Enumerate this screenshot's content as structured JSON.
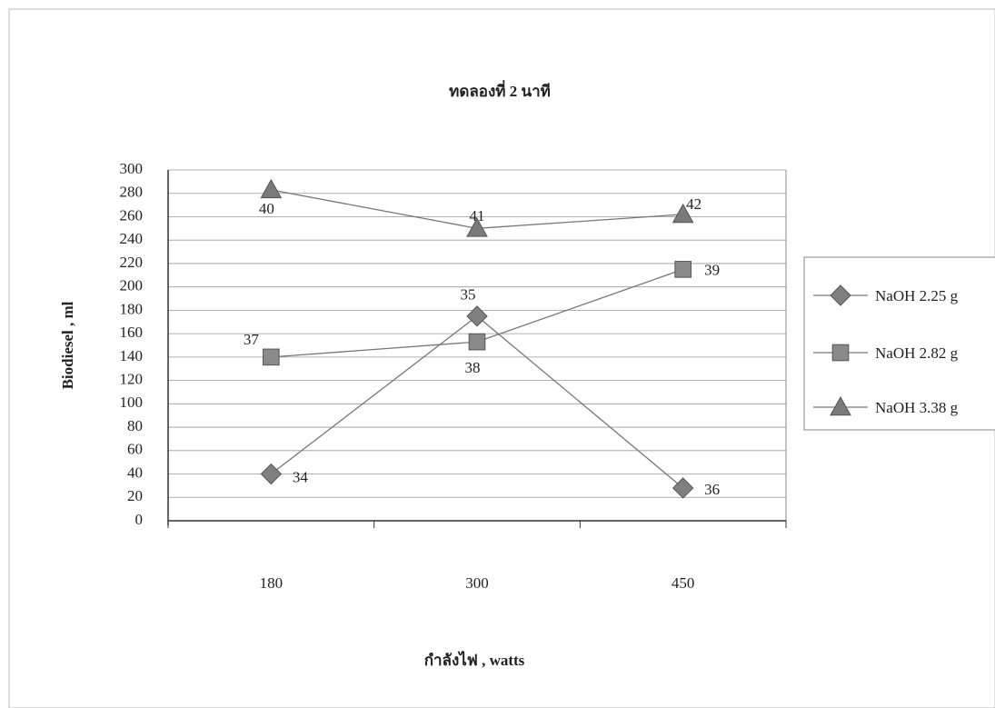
{
  "chart_data": {
    "type": "line",
    "title": "ทดลองที่ 2 นาที",
    "x_label": "กำลังไฟ , watts",
    "y_label": "Biodiesel , ml",
    "categories": [
      "180",
      "300",
      "450"
    ],
    "series": [
      {
        "name": "NaOH 2.25 g",
        "color": "#808080",
        "marker": "diamond",
        "values": [
          40,
          175,
          28
        ],
        "point_labels": [
          34,
          35,
          36
        ]
      },
      {
        "name": "NaOH 2.82 g",
        "color": "#8a8a8a",
        "marker": "square",
        "values": [
          140,
          153,
          215
        ],
        "point_labels": [
          37,
          38,
          39
        ]
      },
      {
        "name": "NaOH 3.38 g",
        "color": "#7a7a7a",
        "marker": "triangle",
        "values": [
          283,
          250,
          262
        ],
        "point_labels": [
          40,
          41,
          42
        ]
      }
    ],
    "ylim": [
      0,
      300
    ],
    "yticks": [
      0,
      20,
      40,
      60,
      80,
      100,
      120,
      140,
      160,
      180,
      200,
      220,
      240,
      260,
      280,
      300
    ],
    "grid": true,
    "legend": "right"
  }
}
